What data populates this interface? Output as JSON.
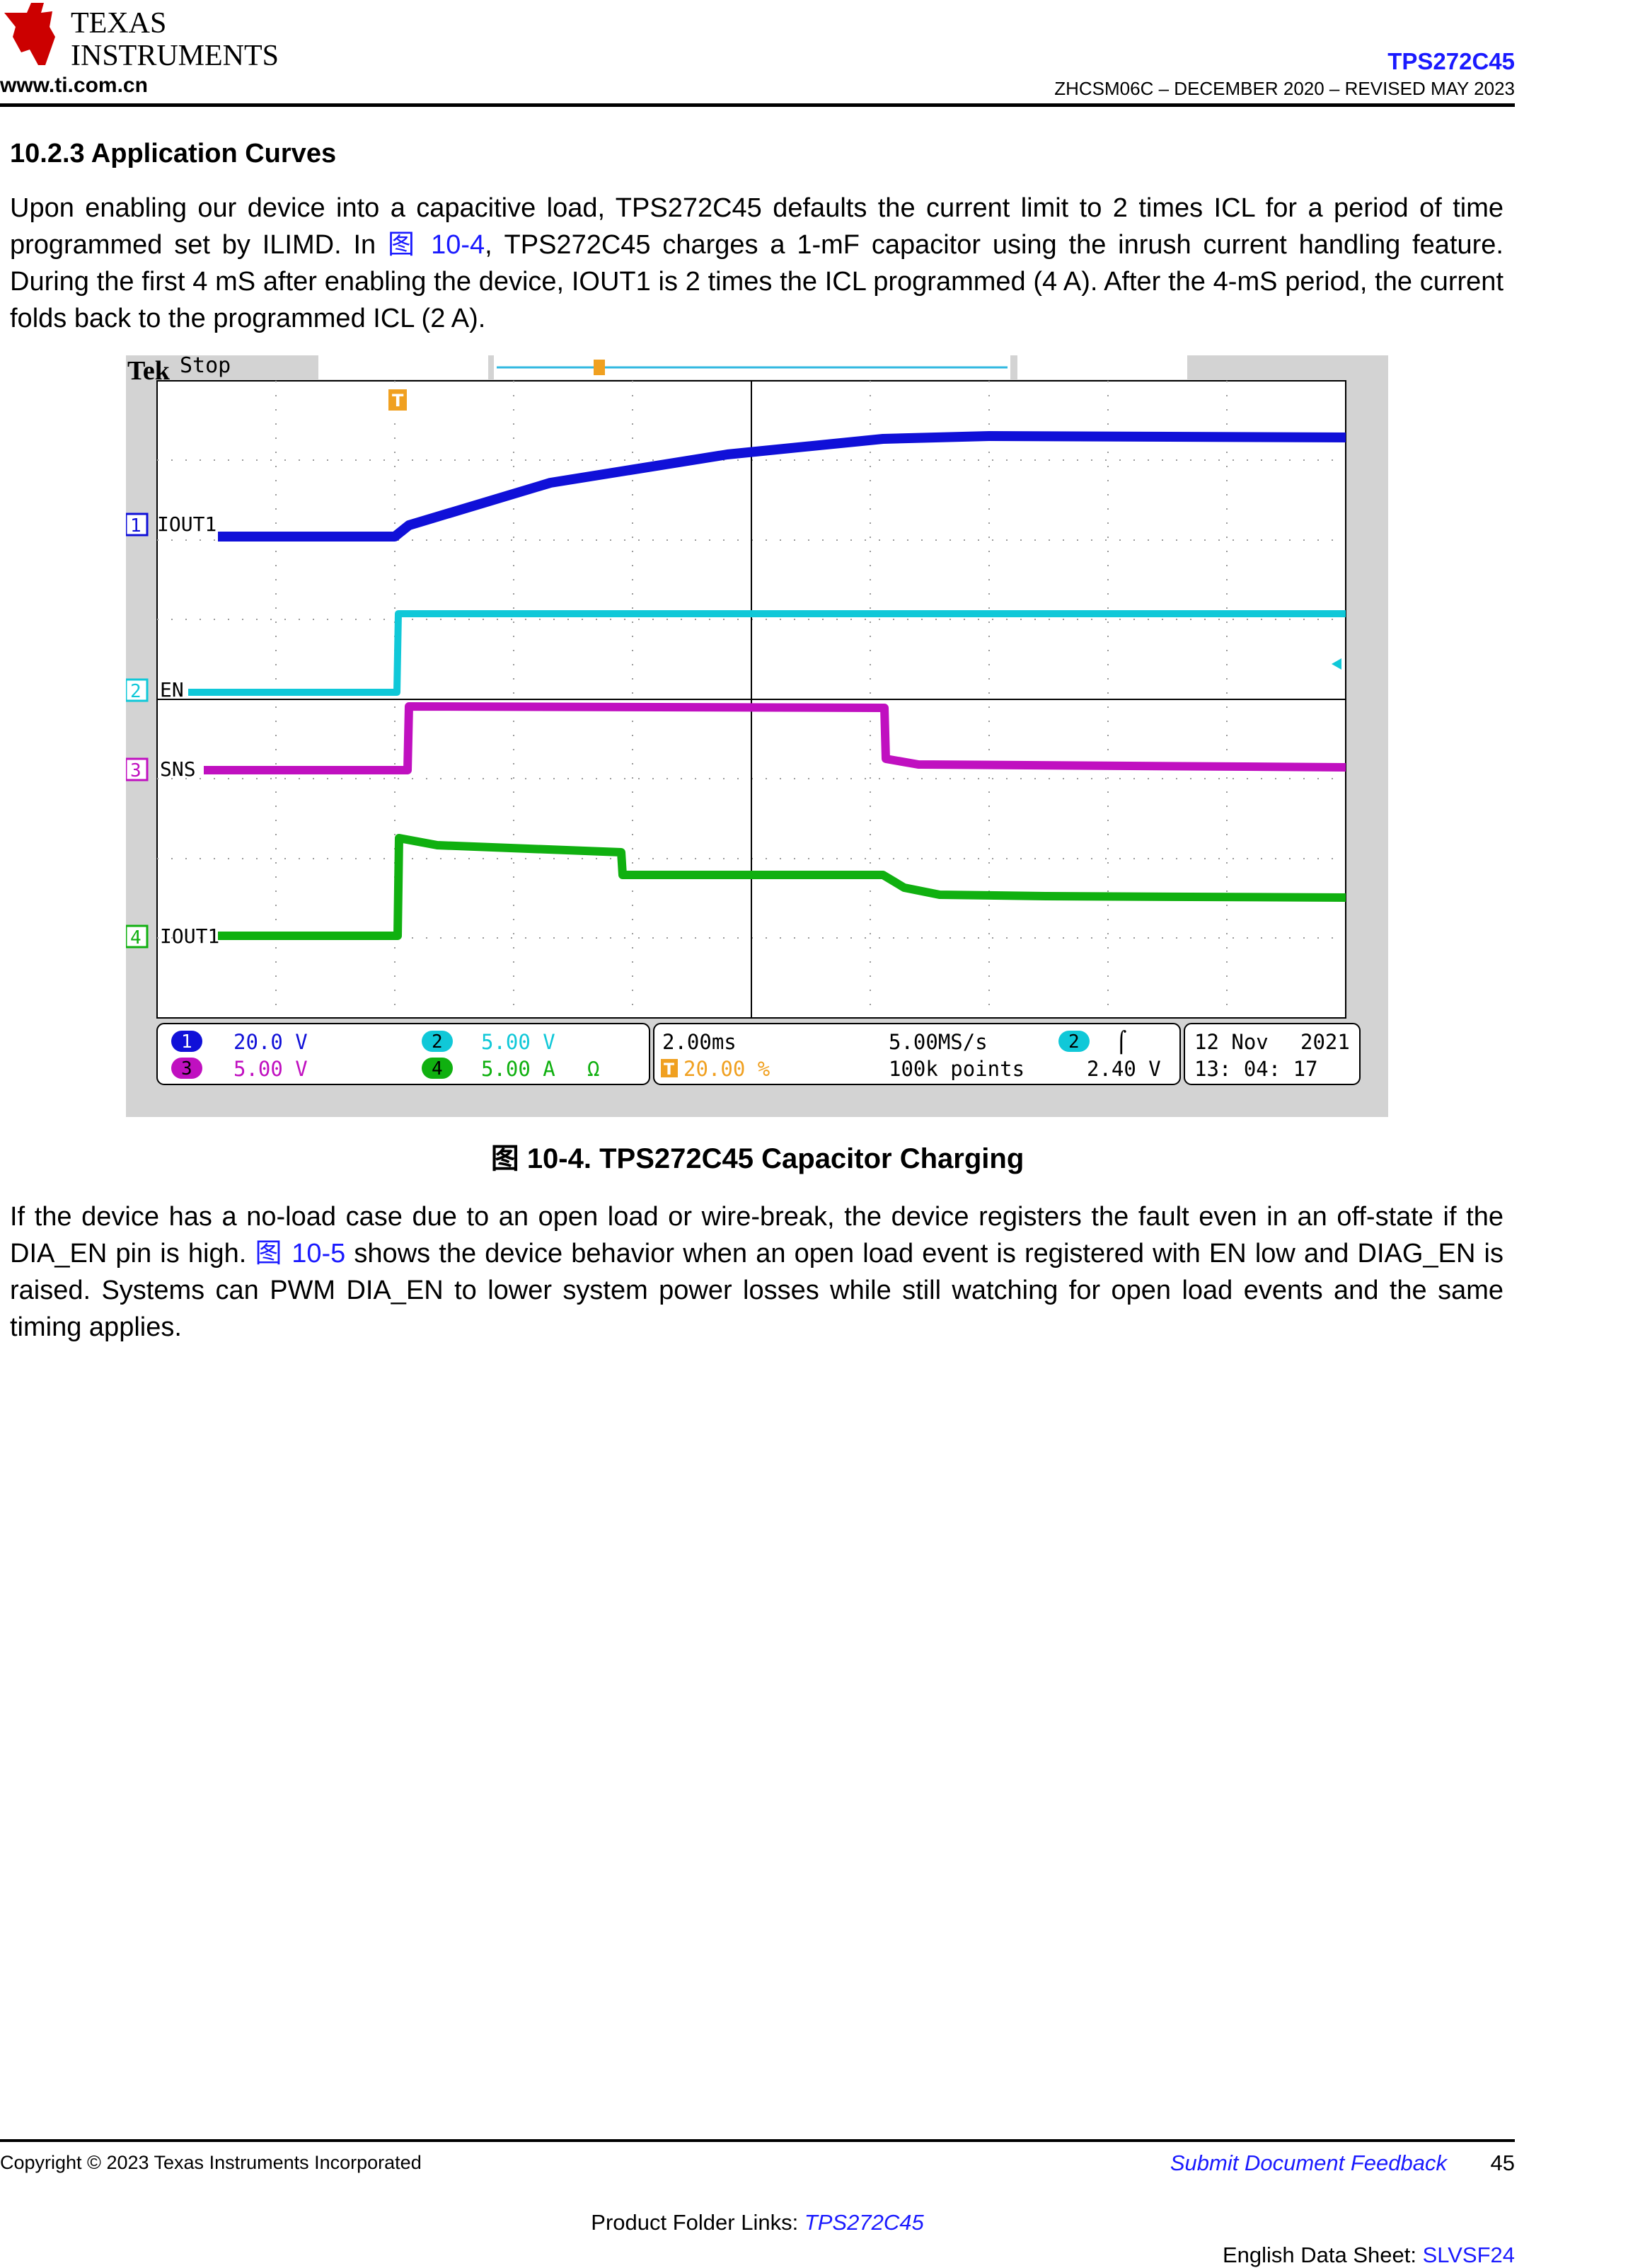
{
  "header": {
    "logo_line1": "TEXAS",
    "logo_line2": "INSTRUMENTS",
    "site": "www.ti.com.cn",
    "product": "TPS272C45",
    "doc_id": "ZHCSM06C – DECEMBER 2020 – REVISED MAY 2023"
  },
  "section": {
    "title": "10.2.3 Application Curves",
    "p1_a": "Upon enabling our device into a capacitive load, TPS272C45 defaults the current limit to 2 times ICL for a period of time programmed set by ILIMD. In ",
    "p1_link": "图 10-4",
    "p1_b": ", TPS272C45 charges a 1-mF capacitor using the inrush current handling feature. During the first 4 mS after enabling the device, IOUT1 is 2 times the ICL programmed (4 A). After the 4-mS period, the current folds back to the programmed ICL (2 A).",
    "p2_a": "If the device has a no-load case due to an open load or wire-break, the device registers the fault even in an off-state if the DIA_EN pin is high. ",
    "p2_link": "图 10-5",
    "p2_b": " shows the device behavior when an open load event is registered with EN low and DIAG_EN is raised. Systems can PWM DIA_EN to lower system power losses while still watching for open load events and the same timing applies."
  },
  "scope": {
    "brand": "Tek",
    "state": "Stop",
    "trigger_marker": "T",
    "channels": [
      {
        "num": "1",
        "label": "IOUT1",
        "scale": "20.0 V",
        "color": "#1010d8"
      },
      {
        "num": "2",
        "label": "EN",
        "scale": "5.00 V",
        "color": "#10c8d8"
      },
      {
        "num": "3",
        "label": "SNS",
        "scale": "5.00 V",
        "color": "#c010c0"
      },
      {
        "num": "4",
        "label": "IOUT1",
        "scale": "5.00 A",
        "scale_suffix": "Ω",
        "color": "#10b010"
      }
    ],
    "timebase": "2.00ms",
    "sample_rate": "5.00MS/s",
    "record_length": "100k points",
    "trigger_position": "20.00 %",
    "trigger_source": "2",
    "trigger_slope": "⌠",
    "trigger_level": "2.40 V",
    "date": "12 Nov",
    "year": "2021",
    "time": "13: 04: 17"
  },
  "figure": {
    "caption": "图 10-4. TPS272C45 Capacitor Charging"
  },
  "footer": {
    "copyright": "Copyright © 2023 Texas Instruments Incorporated",
    "feedback": "Submit Document Feedback",
    "page": "45",
    "folder_prefix": "Product Folder Links: ",
    "folder_link": "TPS272C45",
    "eng_prefix": "English Data Sheet: ",
    "eng_link": "SLVSF24"
  }
}
